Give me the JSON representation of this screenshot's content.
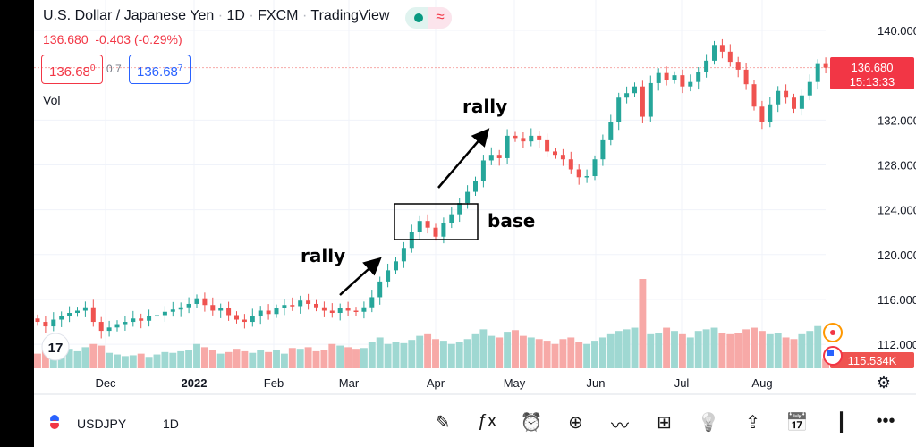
{
  "header": {
    "title": "U.S. Dollar / Japanese Yen",
    "interval": "1D",
    "source": "FXCM",
    "provider": "TradingView",
    "separator": "·",
    "last": "136.680",
    "change": "-0.403",
    "change_pct": "(-0.29%)",
    "market_status_icon": "market-open-dot-icon",
    "wave_icon": "≈"
  },
  "quotes": {
    "bid_main": "136.68",
    "bid_pip": "0",
    "spread": "0.7",
    "ask_main": "136.68",
    "ask_pip": "7"
  },
  "volume_label": "Vol",
  "price_label": {
    "price": "136.680",
    "countdown": "15:13:33"
  },
  "volume_last_label": "115.534K",
  "toolbar": {
    "symbol": "USDJPY",
    "interval": "1D",
    "icons": [
      "draw-pen-icon",
      "indicators-fx-icon",
      "alert-clock-icon",
      "add-circle-icon",
      "chart-compare-icon",
      "layouts-grid-icon",
      "ideas-bulb-icon",
      "share-icon",
      "calendar-replay-icon",
      "candle-type-icon",
      "more-icon"
    ]
  },
  "colors": {
    "up": "#26a69a",
    "down": "#ef5350",
    "up_vol": "#9fd8d2",
    "down_vol": "#f7a9a7",
    "accent": "#2962ff"
  },
  "annotations": {
    "rally1": "rally",
    "rally2": "rally",
    "base": "base"
  },
  "chart_data": {
    "type": "candlestick",
    "symbol": "USDJPY",
    "ylim": [
      110.5,
      141.5
    ],
    "y_ticks": [
      "140.000",
      "132.000",
      "128.000",
      "124.000",
      "120.000",
      "116.000",
      "112.000"
    ],
    "y_tick_values": [
      140,
      132,
      128,
      124,
      120,
      116,
      112
    ],
    "x_ticks": [
      "Dec",
      "2022",
      "Feb",
      "Mar",
      "Apr",
      "May",
      "Jun",
      "Jul",
      "Aug"
    ],
    "close": [
      114.0,
      113.6,
      114.2,
      114.5,
      114.8,
      115.0,
      115.3,
      114.0,
      113.2,
      113.5,
      113.8,
      114.0,
      114.3,
      114.1,
      114.5,
      114.6,
      114.9,
      115.1,
      115.3,
      115.6,
      116.1,
      115.5,
      115.0,
      115.2,
      114.6,
      114.2,
      114.0,
      114.5,
      115.0,
      114.7,
      115.2,
      115.5,
      115.4,
      115.9,
      115.6,
      115.3,
      115.0,
      114.8,
      115.2,
      115.0,
      114.9,
      115.3,
      116.2,
      117.6,
      118.6,
      119.4,
      120.6,
      122.0,
      123.0,
      122.4,
      121.6,
      122.8,
      123.6,
      124.6,
      125.6,
      126.6,
      128.4,
      128.9,
      128.6,
      130.6,
      130.4,
      130.1,
      130.6,
      130.2,
      129.2,
      128.9,
      128.5,
      127.6,
      126.9,
      127.0,
      128.5,
      130.2,
      131.8,
      134.0,
      134.4,
      135.0,
      132.3,
      135.3,
      136.2,
      135.6,
      136.0,
      135.0,
      135.4,
      136.3,
      137.3,
      138.7,
      138.1,
      137.2,
      136.5,
      135.2,
      133.2,
      131.8,
      133.4,
      134.6,
      134.0,
      133.0,
      134.2,
      135.4,
      137.0,
      136.68
    ],
    "volume_k": [
      180,
      220,
      160,
      200,
      240,
      210,
      260,
      300,
      280,
      190,
      170,
      150,
      160,
      180,
      140,
      170,
      200,
      190,
      210,
      230,
      300,
      260,
      220,
      180,
      200,
      240,
      210,
      190,
      230,
      200,
      220,
      180,
      250,
      240,
      260,
      210,
      230,
      300,
      280,
      260,
      240,
      250,
      320,
      380,
      300,
      330,
      310,
      350,
      400,
      420,
      360,
      340,
      300,
      330,
      360,
      420,
      480,
      400,
      380,
      450,
      470,
      400,
      380,
      360,
      340,
      300,
      360,
      380,
      320,
      300,
      340,
      380,
      420,
      460,
      480,
      500,
      1100,
      420,
      440,
      500,
      460,
      420,
      380,
      460,
      480,
      500,
      440,
      420,
      440,
      480,
      500,
      460,
      420,
      440,
      380,
      360,
      420,
      460,
      520,
      115.534
    ]
  }
}
